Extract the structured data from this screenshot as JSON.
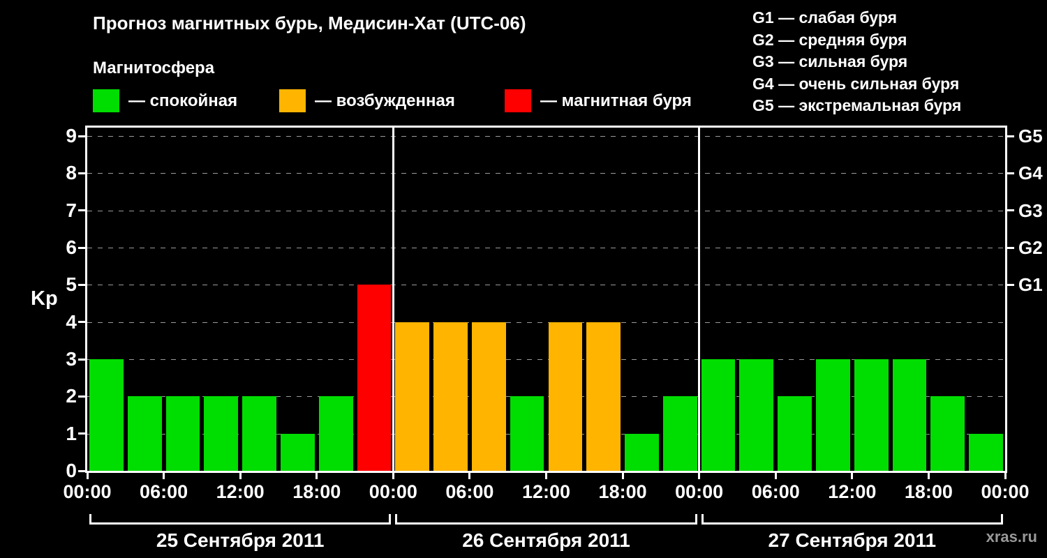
{
  "title": "Прогноз магнитных бурь, Медисин-Хат (UTC-06)",
  "watermark": "xras.ru",
  "legend": {
    "title": "Магнитосфера",
    "items": [
      {
        "name": "quiet",
        "label": "— спокойная",
        "color": "#00dd00"
      },
      {
        "name": "active",
        "label": "— возбужденная",
        "color": "#ffb400"
      },
      {
        "name": "storm",
        "label": "— магнитная буря",
        "color": "#ff0000"
      }
    ]
  },
  "storm_scale": {
    "items": [
      "G1 — слабая буря",
      "G2 — средняя буря",
      "G3 — сильная буря",
      "G4 — очень сильная буря",
      "G5 — экстремальная буря"
    ]
  },
  "chart_data": {
    "type": "bar",
    "title": "Прогноз магнитных бурь, Медисин-Хат (UTC-06)",
    "ylabel": "Kp",
    "ylim": [
      0,
      9
    ],
    "yticks": [
      0,
      1,
      2,
      3,
      4,
      5,
      6,
      7,
      8,
      9
    ],
    "grid": "dashed horizontal lines at Kp 1-9",
    "legend_position": "top",
    "right_axis_labels": [
      {
        "value": 5,
        "label": "G1"
      },
      {
        "value": 6,
        "label": "G2"
      },
      {
        "value": 7,
        "label": "G3"
      },
      {
        "value": 8,
        "label": "G4"
      },
      {
        "value": 9,
        "label": "G5"
      }
    ],
    "x_tick_labels_per_day": [
      "00:00",
      "06:00",
      "12:00",
      "18:00"
    ],
    "x_axis_end_label": "00:00",
    "bar_interval_hours": 3,
    "color_thresholds": {
      "storm_min_kp": 5,
      "active_min_kp": 4
    },
    "colors": {
      "quiet": "#00dd00",
      "active": "#ffb400",
      "storm": "#ff0000"
    },
    "days": [
      {
        "date": "25 Сентября 2011",
        "values": [
          3,
          2,
          2,
          2,
          2,
          1,
          2,
          5
        ]
      },
      {
        "date": "26 Сентября 2011",
        "values": [
          4,
          4,
          4,
          2,
          4,
          4,
          1,
          2
        ]
      },
      {
        "date": "27 Сентября 2011",
        "values": [
          3,
          3,
          2,
          3,
          3,
          3,
          2,
          1
        ]
      }
    ]
  }
}
